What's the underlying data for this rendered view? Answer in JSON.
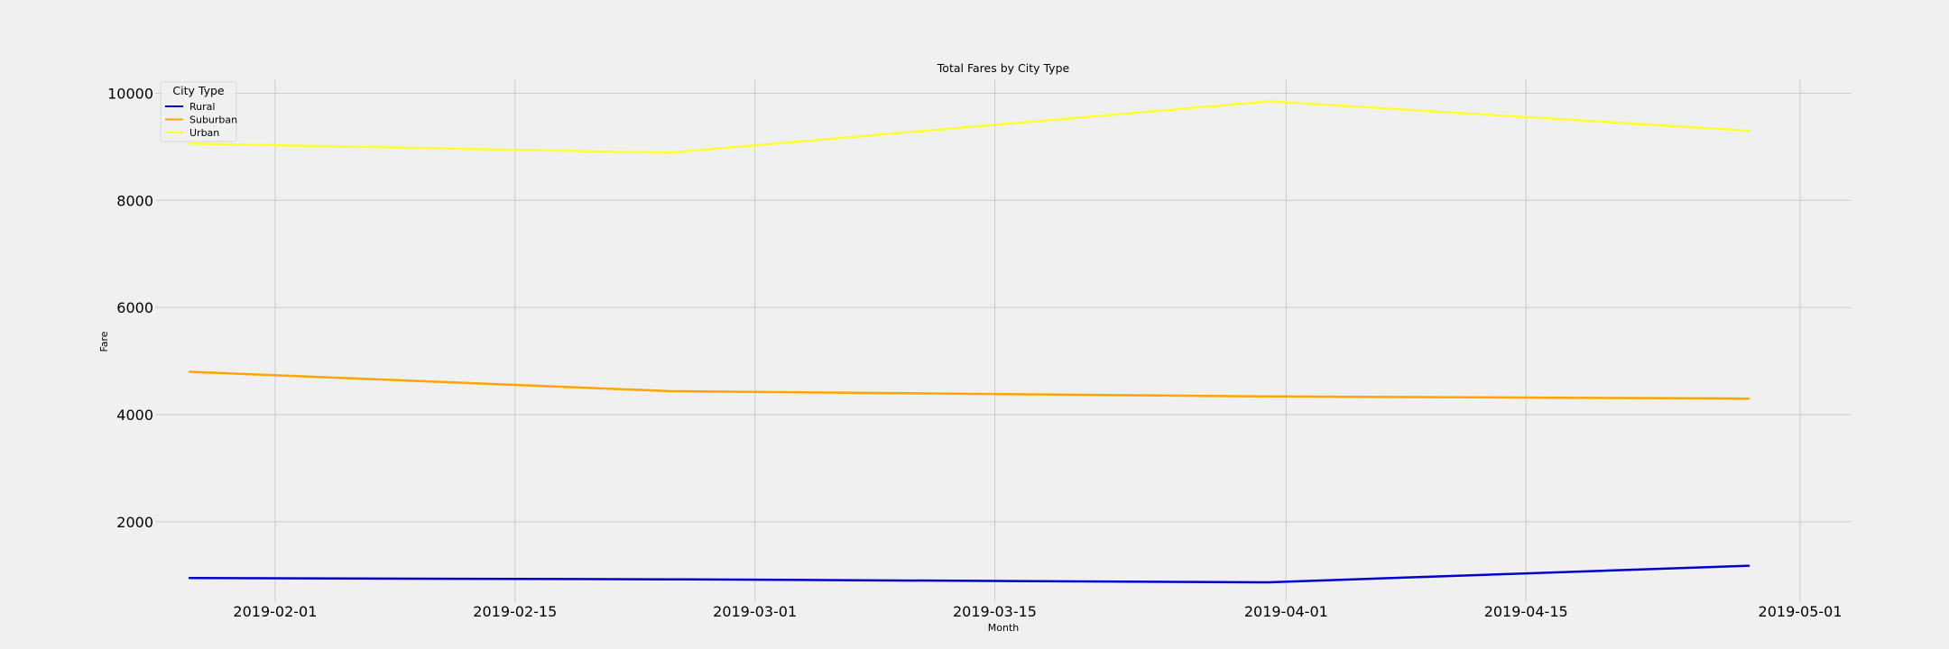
{
  "chart_data": {
    "type": "line",
    "title": "Total Fares by City Type",
    "xlabel": "Month",
    "ylabel": "Fare",
    "x_axis_type": "date",
    "x": [
      "2019-01-27",
      "2019-02-24",
      "2019-03-31",
      "2019-04-28"
    ],
    "xlim": [
      "2019-01-25",
      "2019-05-04"
    ],
    "ylim": [
      500,
      10260
    ],
    "xticks": [
      "2019-02-01",
      "2019-02-15",
      "2019-03-01",
      "2019-03-15",
      "2019-04-01",
      "2019-04-15",
      "2019-05-01"
    ],
    "yticks": [
      2000,
      4000,
      6000,
      8000,
      10000
    ],
    "grid": true,
    "legend": {
      "title": "City Type",
      "position": "upper-left"
    },
    "series": [
      {
        "name": "Rural",
        "color": "#0000cc",
        "values": [
          950,
          925,
          870,
          1180
        ]
      },
      {
        "name": "Suburban",
        "color": "#ffa500",
        "values": [
          4800,
          4440,
          4340,
          4300
        ]
      },
      {
        "name": "Urban",
        "color": "#ffff33",
        "values": [
          9060,
          8890,
          9850,
          9300
        ]
      }
    ]
  }
}
